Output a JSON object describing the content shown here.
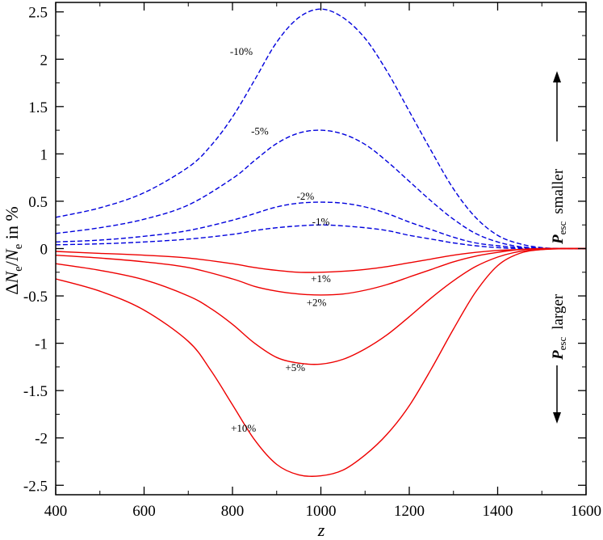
{
  "chart_data": {
    "type": "line",
    "xlabel": "z",
    "ylabel": {
      "delta": "Δ",
      "n1": "N",
      "sub1": "e",
      "slash": "/",
      "n2": "N",
      "sub2": "e",
      "rest": " in %"
    },
    "xlim": [
      400,
      1600
    ],
    "ylim": [
      -2.6,
      2.6
    ],
    "xticks": [
      400,
      600,
      800,
      1000,
      1200,
      1400,
      1600
    ],
    "yticks": [
      -2.5,
      -2,
      -1.5,
      -1,
      -0.5,
      0,
      0.5,
      1,
      1.5,
      2,
      2.5
    ],
    "ytick_labels": [
      "-2.5",
      "-2",
      "-1.5",
      "-1",
      "-0.5",
      "0",
      "0.5",
      "1",
      "1.5",
      "2",
      "2.5"
    ],
    "grid": false,
    "colors": {
      "dashed": "#0000dd",
      "solid": "#ee0000",
      "axis": "#000000"
    },
    "side_annotations": {
      "top": {
        "p": "P",
        "sub": "esc",
        "word": "smaller"
      },
      "bottom": {
        "p": "P",
        "sub": "esc",
        "word": "larger"
      }
    },
    "series": [
      {
        "label": "-10%",
        "style": "dashed",
        "color": "#0000dd",
        "x": [
          400,
          500,
          600,
          700,
          750,
          800,
          850,
          900,
          950,
          1000,
          1050,
          1100,
          1150,
          1200,
          1250,
          1300,
          1350,
          1400,
          1450,
          1500,
          1550,
          1600
        ],
        "y": [
          0.33,
          0.43,
          0.59,
          0.86,
          1.08,
          1.39,
          1.78,
          2.18,
          2.44,
          2.53,
          2.44,
          2.22,
          1.87,
          1.45,
          1.03,
          0.63,
          0.33,
          0.14,
          0.05,
          0.01,
          0.0,
          0.0
        ]
      },
      {
        "label": "-5%",
        "style": "dashed",
        "color": "#0000dd",
        "x": [
          400,
          500,
          600,
          700,
          800,
          850,
          900,
          950,
          1000,
          1050,
          1100,
          1150,
          1200,
          1250,
          1300,
          1350,
          1400,
          1450,
          1500,
          1550,
          1600
        ],
        "y": [
          0.16,
          0.22,
          0.31,
          0.46,
          0.74,
          0.93,
          1.11,
          1.22,
          1.25,
          1.21,
          1.1,
          0.92,
          0.71,
          0.5,
          0.31,
          0.16,
          0.07,
          0.02,
          0.005,
          0.0,
          0.0
        ]
      },
      {
        "label": "-2%",
        "style": "dashed",
        "color": "#0000dd",
        "x": [
          400,
          500,
          600,
          700,
          800,
          850,
          900,
          950,
          1000,
          1050,
          1100,
          1150,
          1200,
          1250,
          1300,
          1350,
          1400,
          1450,
          1500,
          1550,
          1600
        ],
        "y": [
          0.07,
          0.09,
          0.13,
          0.19,
          0.3,
          0.37,
          0.44,
          0.48,
          0.49,
          0.48,
          0.44,
          0.37,
          0.28,
          0.2,
          0.12,
          0.06,
          0.03,
          0.01,
          0.0,
          0.0,
          0.0
        ]
      },
      {
        "label": "-1%",
        "style": "dashed",
        "color": "#0000dd",
        "x": [
          400,
          500,
          600,
          700,
          800,
          850,
          900,
          950,
          1000,
          1050,
          1100,
          1150,
          1200,
          1250,
          1300,
          1350,
          1400,
          1450,
          1500,
          1550,
          1600
        ],
        "y": [
          0.04,
          0.05,
          0.07,
          0.1,
          0.15,
          0.19,
          0.22,
          0.24,
          0.25,
          0.24,
          0.22,
          0.19,
          0.14,
          0.1,
          0.06,
          0.03,
          0.01,
          0.0,
          0.0,
          0.0,
          0.0
        ]
      },
      {
        "label": "+1%",
        "style": "solid",
        "color": "#ee0000",
        "x": [
          400,
          500,
          600,
          700,
          800,
          850,
          900,
          950,
          1000,
          1050,
          1100,
          1150,
          1200,
          1250,
          1300,
          1350,
          1400,
          1450,
          1500,
          1550,
          1600
        ],
        "y": [
          -0.03,
          -0.05,
          -0.07,
          -0.1,
          -0.16,
          -0.2,
          -0.23,
          -0.25,
          -0.25,
          -0.24,
          -0.22,
          -0.19,
          -0.15,
          -0.11,
          -0.07,
          -0.04,
          -0.02,
          -0.01,
          0.0,
          0.0,
          0.0
        ]
      },
      {
        "label": "+2%",
        "style": "solid",
        "color": "#ee0000",
        "x": [
          400,
          500,
          600,
          700,
          800,
          850,
          900,
          950,
          1000,
          1050,
          1100,
          1150,
          1200,
          1250,
          1300,
          1350,
          1400,
          1450,
          1500,
          1550,
          1600
        ],
        "y": [
          -0.07,
          -0.1,
          -0.14,
          -0.2,
          -0.32,
          -0.4,
          -0.45,
          -0.48,
          -0.49,
          -0.48,
          -0.44,
          -0.38,
          -0.3,
          -0.22,
          -0.14,
          -0.08,
          -0.04,
          -0.01,
          0.0,
          0.0,
          0.0
        ]
      },
      {
        "label": "+5%",
        "style": "solid",
        "color": "#ee0000",
        "x": [
          400,
          500,
          600,
          700,
          750,
          800,
          850,
          900,
          950,
          1000,
          1050,
          1100,
          1150,
          1200,
          1250,
          1300,
          1350,
          1400,
          1450,
          1500,
          1550,
          1600
        ],
        "y": [
          -0.16,
          -0.23,
          -0.33,
          -0.5,
          -0.63,
          -0.8,
          -1.0,
          -1.15,
          -1.21,
          -1.22,
          -1.17,
          -1.06,
          -0.91,
          -0.72,
          -0.52,
          -0.34,
          -0.19,
          -0.09,
          -0.03,
          -0.01,
          0.0,
          0.0
        ]
      },
      {
        "label": "+10%",
        "style": "solid",
        "color": "#ee0000",
        "x": [
          400,
          500,
          600,
          700,
          750,
          800,
          850,
          900,
          950,
          1000,
          1050,
          1100,
          1150,
          1200,
          1250,
          1300,
          1350,
          1400,
          1450,
          1500,
          1550,
          1600
        ],
        "y": [
          -0.32,
          -0.45,
          -0.65,
          -0.98,
          -1.28,
          -1.65,
          -2.02,
          -2.28,
          -2.39,
          -2.4,
          -2.34,
          -2.18,
          -1.96,
          -1.66,
          -1.27,
          -0.85,
          -0.46,
          -0.18,
          -0.05,
          -0.01,
          0.0,
          0.0
        ]
      }
    ],
    "annotations": [
      {
        "text": "-10%",
        "x": 820,
        "y": 2.08
      },
      {
        "text": "-5%",
        "x": 862,
        "y": 1.24
      },
      {
        "text": "-2%",
        "x": 965,
        "y": 0.55
      },
      {
        "text": "-1%",
        "x": 1000,
        "y": 0.28
      },
      {
        "text": "+1%",
        "x": 1000,
        "y": -0.32
      },
      {
        "text": "+2%",
        "x": 990,
        "y": -0.57
      },
      {
        "text": "+5%",
        "x": 942,
        "y": -1.26
      },
      {
        "text": "+10%",
        "x": 825,
        "y": -1.9
      }
    ]
  }
}
